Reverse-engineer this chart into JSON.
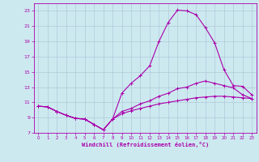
{
  "xlabel": "Windchill (Refroidissement éolien,°C)",
  "background_color": "#cde9f0",
  "grid_color": "#b0c8d8",
  "line_color": "#aa00aa",
  "x_hours": [
    0,
    1,
    2,
    3,
    4,
    5,
    6,
    7,
    8,
    9,
    10,
    11,
    12,
    13,
    14,
    15,
    16,
    17,
    18,
    19,
    20,
    21,
    22,
    23
  ],
  "line1_y": [
    10.5,
    10.4,
    9.8,
    9.3,
    8.9,
    8.8,
    8.1,
    7.4,
    8.8,
    12.2,
    13.5,
    14.5,
    15.8,
    19.0,
    21.5,
    23.1,
    23.0,
    22.5,
    20.8,
    18.8,
    15.3,
    13.2,
    13.1,
    12.0
  ],
  "line2_y": [
    10.5,
    10.4,
    9.8,
    9.3,
    8.9,
    8.8,
    8.1,
    7.4,
    8.8,
    9.8,
    10.2,
    10.8,
    11.2,
    11.8,
    12.2,
    12.8,
    13.0,
    13.5,
    13.8,
    13.5,
    13.2,
    12.9,
    12.0,
    11.5
  ],
  "line3_y": [
    10.5,
    10.4,
    9.8,
    9.3,
    8.9,
    8.8,
    8.1,
    7.4,
    8.8,
    9.5,
    9.9,
    10.2,
    10.5,
    10.8,
    11.0,
    11.2,
    11.4,
    11.6,
    11.7,
    11.8,
    11.8,
    11.7,
    11.6,
    11.5
  ],
  "ylim": [
    7,
    24
  ],
  "yticks": [
    7,
    9,
    11,
    13,
    15,
    17,
    19,
    21,
    23
  ],
  "xlim": [
    0,
    23
  ],
  "xticks": [
    0,
    1,
    2,
    3,
    4,
    5,
    6,
    7,
    8,
    9,
    10,
    11,
    12,
    13,
    14,
    15,
    16,
    17,
    18,
    19,
    20,
    21,
    22,
    23
  ]
}
